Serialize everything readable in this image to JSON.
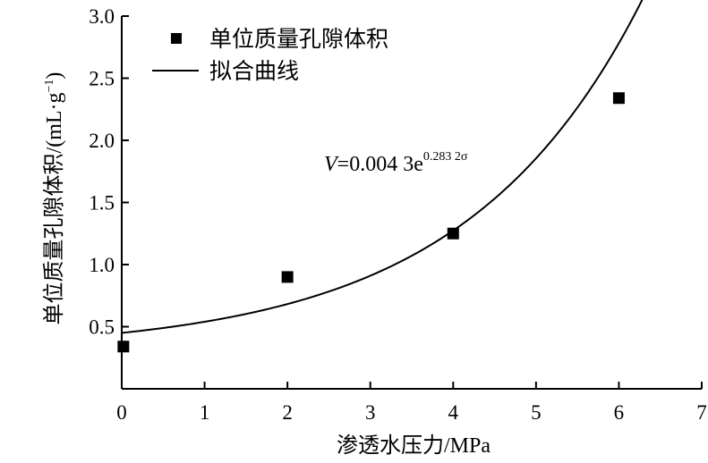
{
  "chart_data": {
    "type": "scatter",
    "xlabel": "渗透水压力/MPa",
    "ylabel": "单位质量孔隙体积/(mL·g",
    "ylabel_sup": "−1",
    "ylabel_close": ")",
    "xlim": [
      0,
      7
    ],
    "ylim": [
      0,
      3.0
    ],
    "x_ticks": [
      0,
      1,
      2,
      3,
      4,
      5,
      6,
      7
    ],
    "x_tick_labels": [
      "0",
      "1",
      "2",
      "3",
      "4",
      "5",
      "6",
      "7"
    ],
    "y_ticks": [
      0.5,
      1.0,
      1.5,
      2.0,
      2.5,
      3.0
    ],
    "y_tick_labels": [
      "0.5",
      "1.0",
      "1.5",
      "2.0",
      "2.5",
      "3.0"
    ],
    "grid": false,
    "legend_position": "top-left",
    "series": [
      {
        "name": "单位质量孔隙体积",
        "kind": "scatter",
        "marker": "square",
        "points": [
          {
            "x": 0.02,
            "y": 0.34
          },
          {
            "x": 2.0,
            "y": 0.9
          },
          {
            "x": 4.0,
            "y": 1.25
          },
          {
            "x": 6.0,
            "y": 2.34
          }
        ]
      },
      {
        "name": "拟合曲线",
        "kind": "line",
        "x_range": [
          0,
          6.5
        ]
      }
    ],
    "annotation": {
      "var": "V",
      "eq": "=0.004 3e",
      "exp": "0.283 2σ"
    }
  }
}
